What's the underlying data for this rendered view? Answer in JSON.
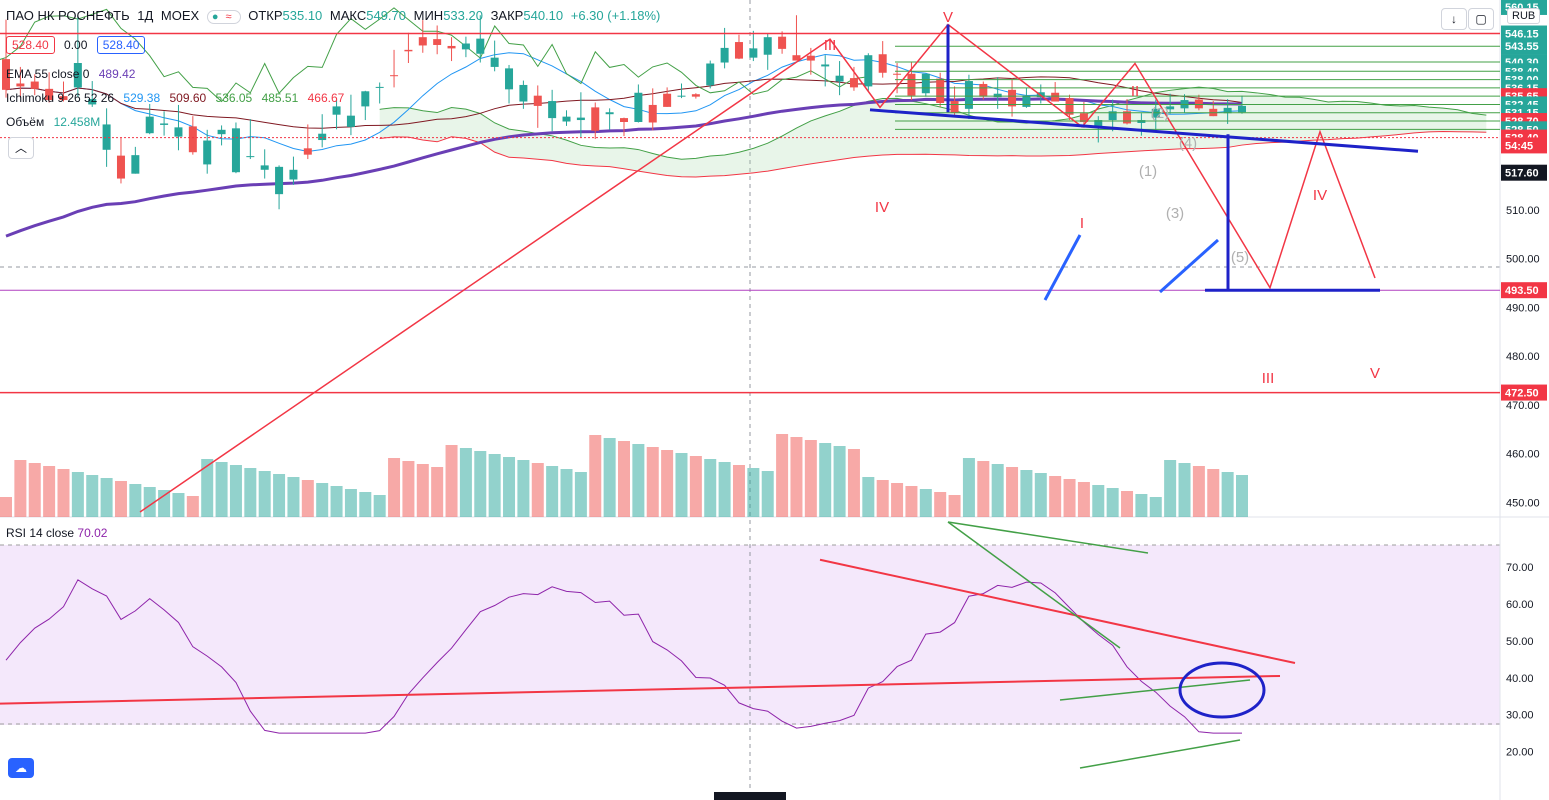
{
  "header": {
    "symbol": "ПАО НК РОСНЕФТЬ",
    "interval": "1Д",
    "exchange": "MOEX",
    "open_label": "ОТКР",
    "open": "535.10",
    "high_label": "МАКС",
    "high": "549.70",
    "low_label": "МИН",
    "low": "533.20",
    "close_label": "ЗАКР",
    "close": "540.10",
    "change": "+6.30 (+1.18%)"
  },
  "quote": {
    "bid": "528.40",
    "spread": "0.00",
    "ask": "528.40"
  },
  "indicators": {
    "ema": {
      "label": "EMA 55 close 0",
      "value": "489.42"
    },
    "ichimoku": {
      "label": "Ichimoku 9 26 52 26",
      "v1": "529.38",
      "v2": "509.60",
      "v3": "536.05",
      "v4": "485.51",
      "v5": "466.67"
    },
    "volume": {
      "label": "Объём",
      "value": "12.458M"
    },
    "rsi": {
      "label": "RSI 14 close",
      "value": "70.02"
    }
  },
  "toolbar": {
    "currency": "RUB",
    "collapse_icon": "chevron-up-icon",
    "download_icon": "arrow-down-icon",
    "fullscreen_icon": "square-icon",
    "tv_logo": "tradingview-logo-icon"
  },
  "colors": {
    "up": "#26a69a",
    "down": "#ef5350",
    "ema": "#6a3fb5",
    "rsi": "#8e24aa",
    "red_line": "#f23645",
    "blue_draw": "#1e22c8",
    "green_line": "#43a047"
  },
  "chart_data": [
    {
      "type": "candlestick",
      "ylim": [
        448,
        552
      ],
      "y_ticks": [
        450,
        460,
        470,
        480,
        490,
        500,
        510,
        520,
        530,
        540,
        550
      ],
      "y_tick_labels": [
        "450.00",
        "460.00",
        "470.00",
        "480.00",
        "490.00",
        "500.00",
        "510.00",
        "",
        "",
        "",
        ""
      ],
      "price_labels": [
        {
          "text": "560.15",
          "v": 551.6,
          "color": "#26a69a"
        },
        {
          "text": "546.15",
          "v": 546.15,
          "color": "#26a69a"
        },
        {
          "text": "543.55",
          "v": 543.55,
          "color": "#26a69a"
        },
        {
          "text": "540.30",
          "v": 540.3,
          "color": "#26a69a"
        },
        {
          "text": "538.40",
          "v": 538.4,
          "color": "#26a69a"
        },
        {
          "text": "538.00",
          "v": 536.7,
          "color": "#26a69a"
        },
        {
          "text": "536.15",
          "v": 535.0,
          "color": "#26a69a"
        },
        {
          "text": "535.65",
          "v": 533.3,
          "color": "#f23645"
        },
        {
          "text": "532.45",
          "v": 531.6,
          "color": "#26a69a"
        },
        {
          "text": "531.15",
          "v": 529.9,
          "color": "#26a69a"
        },
        {
          "text": "528.70",
          "v": 528.2,
          "color": "#f23645"
        },
        {
          "text": "528.50",
          "v": 526.5,
          "color": "#26a69a"
        },
        {
          "text": "528.40",
          "v": 524.8,
          "color": "#f23645"
        },
        {
          "text": "54:45",
          "v": 523.2,
          "color": "#f23645"
        },
        {
          "text": "517.60",
          "v": 517.6,
          "color": "#131722"
        },
        {
          "text": "493.50",
          "v": 493.5,
          "color": "#f23645"
        },
        {
          "text": "472.50",
          "v": 472.5,
          "color": "#f23645"
        }
      ],
      "candles": [
        [
          540.9,
          549.0,
          533.0,
          534.6
        ],
        [
          535.9,
          539.3,
          533.0,
          535.3
        ],
        [
          536.3,
          537.8,
          533.5,
          534.8
        ],
        [
          534.8,
          538.2,
          532.0,
          532.5
        ],
        [
          533.3,
          536.3,
          532.2,
          532.5
        ],
        [
          535.1,
          549.7,
          533.2,
          540.1
        ],
        [
          531.6,
          536.4,
          531.1,
          532.7
        ],
        [
          522.3,
          530.8,
          518.8,
          527.5
        ],
        [
          521.1,
          524.8,
          515.4,
          516.4
        ],
        [
          517.4,
          522.9,
          517.4,
          521.2
        ],
        [
          525.7,
          531.7,
          525.5,
          529.1
        ],
        [
          527.4,
          530.2,
          525.2,
          527.7
        ],
        [
          525.0,
          531.5,
          522.2,
          526.9
        ],
        [
          527.1,
          529.2,
          521.3,
          521.8
        ],
        [
          519.3,
          526.4,
          517.4,
          524.2
        ],
        [
          525.5,
          527.3,
          523.2,
          526.4
        ],
        [
          517.7,
          527.9,
          517.5,
          526.7
        ],
        [
          520.8,
          528.6,
          520.4,
          521.0
        ],
        [
          518.2,
          522.4,
          516.4,
          519.1
        ],
        [
          513.2,
          519.1,
          510.1,
          518.8
        ],
        [
          516.2,
          520.9,
          515.1,
          518.2
        ],
        [
          522.6,
          527.5,
          520.4,
          521.3
        ],
        [
          524.3,
          529.6,
          522.8,
          525.6
        ],
        [
          529.5,
          532.6,
          526.5,
          531.2
        ],
        [
          527.0,
          533.6,
          525.3,
          529.3
        ],
        [
          531.2,
          534.4,
          528.4,
          534.3
        ],
        [
          535.2,
          536.1,
          531.8,
          535.2
        ],
        [
          537.6,
          542.8,
          535.1,
          537.5
        ],
        [
          542.8,
          546.3,
          540.1,
          542.5
        ],
        [
          545.4,
          548.9,
          542.2,
          543.7
        ],
        [
          545.0,
          547.8,
          541.9,
          543.8
        ],
        [
          543.6,
          545.4,
          540.5,
          543.1
        ],
        [
          542.9,
          545.5,
          541.3,
          544.1
        ],
        [
          542.0,
          549.9,
          540.2,
          545.1
        ],
        [
          539.3,
          544.7,
          538.4,
          541.2
        ],
        [
          534.7,
          539.7,
          531.8,
          539.0
        ],
        [
          532.2,
          536.5,
          530.7,
          535.6
        ],
        [
          533.4,
          535.5,
          526.8,
          531.3
        ],
        [
          528.8,
          534.6,
          526.1,
          532.3
        ],
        [
          528.1,
          530.4,
          527.2,
          529.1
        ],
        [
          528.4,
          534.1,
          524.9,
          528.9
        ],
        [
          531.0,
          532.0,
          524.5,
          526.2
        ],
        [
          529.6,
          530.8,
          526.4,
          530.0
        ],
        [
          528.8,
          528.9,
          525.1,
          528.0
        ],
        [
          528.0,
          535.7,
          527.9,
          534.0
        ],
        [
          531.5,
          534.9,
          526.3,
          527.9
        ],
        [
          533.8,
          535.1,
          531.1,
          531.1
        ],
        [
          533.3,
          535.9,
          532.9,
          533.4
        ],
        [
          533.7,
          533.9,
          532.8,
          533.2
        ],
        [
          535.5,
          540.6,
          534.9,
          540.0
        ],
        [
          540.2,
          547.3,
          539.0,
          543.2
        ],
        [
          544.4,
          545.9,
          540.9,
          541.0
        ],
        [
          541.2,
          546.7,
          540.5,
          543.1
        ],
        [
          541.8,
          546.1,
          538.7,
          545.4
        ],
        [
          545.5,
          546.6,
          542.0,
          543.0
        ],
        [
          541.7,
          549.9,
          540.6,
          540.6
        ],
        [
          541.6,
          543.2,
          537.7,
          540.6
        ],
        [
          539.4,
          541.7,
          535.3,
          539.8
        ],
        [
          536.3,
          540.5,
          533.5,
          537.5
        ],
        [
          537.0,
          539.3,
          534.4,
          535.1
        ],
        [
          535.3,
          542.1,
          534.4,
          541.7
        ],
        [
          541.9,
          544.6,
          537.1,
          538.1
        ],
        [
          537.9,
          540.1,
          533.9,
          537.8
        ],
        [
          537.9,
          540.2,
          532.5,
          533.4
        ],
        [
          533.9,
          537.9,
          533.2,
          537.9
        ],
        [
          536.9,
          538.1,
          531.1,
          531.9
        ],
        [
          532.3,
          535.3,
          529.1,
          529.9
        ],
        [
          530.7,
          537.7,
          528.6,
          536.4
        ],
        [
          535.8,
          536.3,
          532.6,
          533.2
        ],
        [
          533.1,
          537.2,
          530.7,
          533.8
        ],
        [
          534.6,
          537.0,
          529.1,
          531.2
        ],
        [
          531.1,
          535.0,
          530.9,
          533.3
        ],
        [
          533.1,
          535.7,
          531.8,
          534.1
        ],
        [
          534.0,
          536.2,
          532.2,
          532.2
        ],
        [
          532.9,
          533.6,
          528.4,
          529.5
        ],
        [
          529.8,
          532.1,
          526.8,
          528.0
        ],
        [
          527.1,
          529.2,
          523.8,
          528.4
        ],
        [
          528.4,
          532.6,
          526.1,
          530.2
        ],
        [
          530.2,
          532.7,
          527.5,
          527.7
        ],
        [
          527.8,
          529.8,
          525.2,
          528.4
        ],
        [
          528.9,
          532.6,
          526.1,
          530.7
        ],
        [
          530.6,
          533.8,
          529.7,
          531.2
        ],
        [
          530.8,
          533.7,
          529.9,
          532.5
        ],
        [
          532.6,
          533.6,
          530.4,
          530.8
        ],
        [
          530.7,
          532.3,
          529.2,
          529.2
        ],
        [
          529.8,
          532.7,
          527.6,
          530.9
        ],
        [
          530.0,
          533.4,
          529.7,
          531.3
        ]
      ],
      "rsi_ylim": [
        15,
        76
      ],
      "rsi_ticks": [
        20,
        30,
        40,
        50,
        60,
        70
      ],
      "rsi_tick_labels": [
        "20.00",
        "30.00",
        "40.00",
        "50.00",
        "60.00",
        "70.00"
      ],
      "annotations": [
        "V",
        "III",
        "IV",
        "I",
        "II",
        "IV",
        "III",
        "V",
        "(1)",
        "(2)",
        "(3)",
        "(4)",
        "(5)"
      ]
    }
  ]
}
